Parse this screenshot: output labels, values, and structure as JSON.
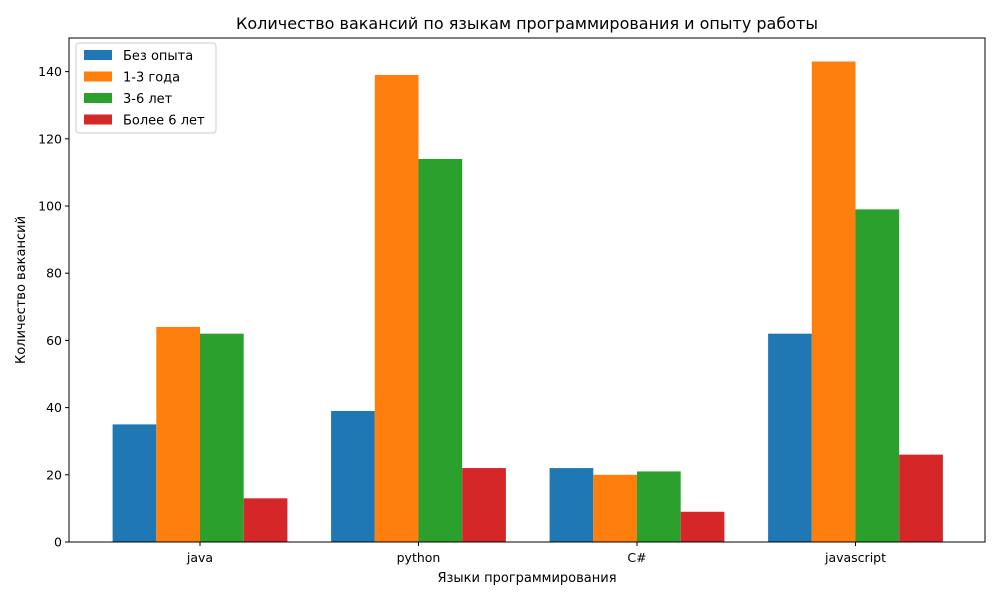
{
  "chart_data": {
    "type": "bar",
    "title": "Количество вакансий по языкам программирования и опыту работы",
    "xlabel": "Языки программирования",
    "ylabel": "Количество вакансий",
    "categories": [
      "java",
      "python",
      "C#",
      "javascript"
    ],
    "series": [
      {
        "name": "Без опыта",
        "color": "#1f77b4",
        "values": [
          35,
          39,
          22,
          62
        ]
      },
      {
        "name": "1-3 года",
        "color": "#ff7f0e",
        "values": [
          64,
          139,
          20,
          143
        ]
      },
      {
        "name": "3-6 лет",
        "color": "#2ca02c",
        "values": [
          62,
          114,
          21,
          99
        ]
      },
      {
        "name": "Более 6 лет",
        "color": "#d62728",
        "values": [
          13,
          22,
          9,
          26
        ]
      }
    ],
    "ylim": [
      0,
      150
    ],
    "yticks": [
      0,
      20,
      40,
      60,
      80,
      100,
      120,
      140
    ],
    "grid": false,
    "legend": "top-left"
  }
}
